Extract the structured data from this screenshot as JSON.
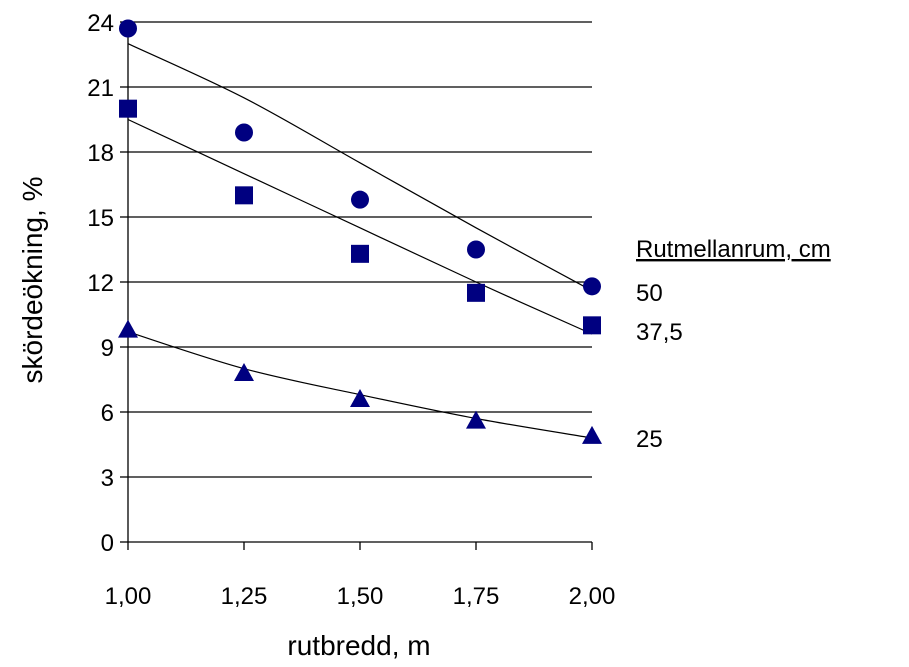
{
  "chart_data": {
    "type": "scatter",
    "title": "",
    "xlabel": "rutbredd, m",
    "ylabel": "skördeökning, %",
    "xlim": [
      1.0,
      2.0
    ],
    "ylim": [
      0,
      24
    ],
    "x_ticks": [
      1.0,
      1.25,
      1.5,
      1.75,
      2.0
    ],
    "x_tick_labels": [
      "1,00",
      "1,25",
      "1,50",
      "1,75",
      "2,00"
    ],
    "y_ticks": [
      0,
      3,
      6,
      9,
      12,
      15,
      18,
      21,
      24
    ],
    "y_tick_labels": [
      "0",
      "3",
      "6",
      "9",
      "12",
      "15",
      "18",
      "21",
      "24"
    ],
    "grid": "horizontal",
    "legend_title": "Rutmellanrum, cm",
    "legend_placement": "right",
    "marker_color": "#000080",
    "trendline_color": "#000000",
    "x": [
      1.0,
      1.25,
      1.5,
      1.75,
      2.0
    ],
    "series": [
      {
        "name": "50",
        "marker": "circle",
        "values": [
          23.7,
          18.9,
          15.8,
          13.5,
          11.8
        ],
        "trend": [
          23.0,
          20.5,
          17.5,
          14.5,
          11.6
        ]
      },
      {
        "name": "37,5",
        "marker": "square",
        "values": [
          20.0,
          16.0,
          13.3,
          11.5,
          10.0
        ],
        "trend": [
          19.5,
          17.0,
          14.5,
          12.0,
          9.6
        ]
      },
      {
        "name": "25",
        "marker": "triangle",
        "values": [
          9.8,
          7.8,
          6.6,
          5.6,
          4.9
        ],
        "trend": [
          9.7,
          8.0,
          6.8,
          5.7,
          4.8
        ]
      }
    ]
  }
}
